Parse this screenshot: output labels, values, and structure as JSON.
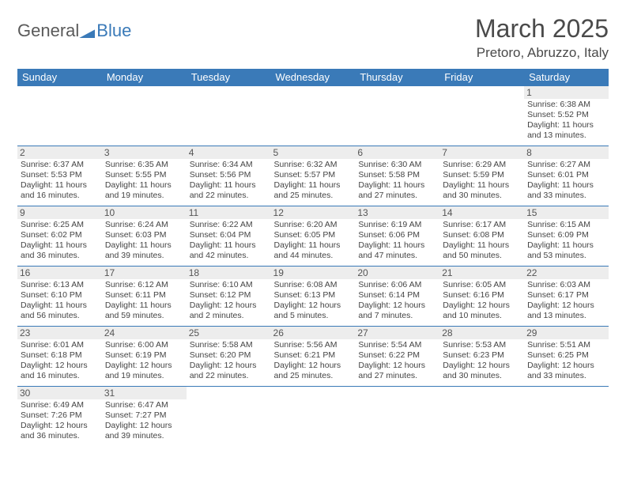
{
  "logo": {
    "part1": "General",
    "part2": "Blue"
  },
  "title": "March 2025",
  "location": "Pretoro, Abruzzo, Italy",
  "colors": {
    "header_bg": "#3a7ab8",
    "header_fg": "#ffffff",
    "daynum_bg": "#ededed",
    "border": "#3a7ab8",
    "text": "#444444"
  },
  "weekdays": [
    "Sunday",
    "Monday",
    "Tuesday",
    "Wednesday",
    "Thursday",
    "Friday",
    "Saturday"
  ],
  "weeks": [
    [
      null,
      null,
      null,
      null,
      null,
      null,
      {
        "n": "1",
        "sr": "Sunrise: 6:38 AM",
        "ss": "Sunset: 5:52 PM",
        "d1": "Daylight: 11 hours",
        "d2": "and 13 minutes."
      }
    ],
    [
      {
        "n": "2",
        "sr": "Sunrise: 6:37 AM",
        "ss": "Sunset: 5:53 PM",
        "d1": "Daylight: 11 hours",
        "d2": "and 16 minutes."
      },
      {
        "n": "3",
        "sr": "Sunrise: 6:35 AM",
        "ss": "Sunset: 5:55 PM",
        "d1": "Daylight: 11 hours",
        "d2": "and 19 minutes."
      },
      {
        "n": "4",
        "sr": "Sunrise: 6:34 AM",
        "ss": "Sunset: 5:56 PM",
        "d1": "Daylight: 11 hours",
        "d2": "and 22 minutes."
      },
      {
        "n": "5",
        "sr": "Sunrise: 6:32 AM",
        "ss": "Sunset: 5:57 PM",
        "d1": "Daylight: 11 hours",
        "d2": "and 25 minutes."
      },
      {
        "n": "6",
        "sr": "Sunrise: 6:30 AM",
        "ss": "Sunset: 5:58 PM",
        "d1": "Daylight: 11 hours",
        "d2": "and 27 minutes."
      },
      {
        "n": "7",
        "sr": "Sunrise: 6:29 AM",
        "ss": "Sunset: 5:59 PM",
        "d1": "Daylight: 11 hours",
        "d2": "and 30 minutes."
      },
      {
        "n": "8",
        "sr": "Sunrise: 6:27 AM",
        "ss": "Sunset: 6:01 PM",
        "d1": "Daylight: 11 hours",
        "d2": "and 33 minutes."
      }
    ],
    [
      {
        "n": "9",
        "sr": "Sunrise: 6:25 AM",
        "ss": "Sunset: 6:02 PM",
        "d1": "Daylight: 11 hours",
        "d2": "and 36 minutes."
      },
      {
        "n": "10",
        "sr": "Sunrise: 6:24 AM",
        "ss": "Sunset: 6:03 PM",
        "d1": "Daylight: 11 hours",
        "d2": "and 39 minutes."
      },
      {
        "n": "11",
        "sr": "Sunrise: 6:22 AM",
        "ss": "Sunset: 6:04 PM",
        "d1": "Daylight: 11 hours",
        "d2": "and 42 minutes."
      },
      {
        "n": "12",
        "sr": "Sunrise: 6:20 AM",
        "ss": "Sunset: 6:05 PM",
        "d1": "Daylight: 11 hours",
        "d2": "and 44 minutes."
      },
      {
        "n": "13",
        "sr": "Sunrise: 6:19 AM",
        "ss": "Sunset: 6:06 PM",
        "d1": "Daylight: 11 hours",
        "d2": "and 47 minutes."
      },
      {
        "n": "14",
        "sr": "Sunrise: 6:17 AM",
        "ss": "Sunset: 6:08 PM",
        "d1": "Daylight: 11 hours",
        "d2": "and 50 minutes."
      },
      {
        "n": "15",
        "sr": "Sunrise: 6:15 AM",
        "ss": "Sunset: 6:09 PM",
        "d1": "Daylight: 11 hours",
        "d2": "and 53 minutes."
      }
    ],
    [
      {
        "n": "16",
        "sr": "Sunrise: 6:13 AM",
        "ss": "Sunset: 6:10 PM",
        "d1": "Daylight: 11 hours",
        "d2": "and 56 minutes."
      },
      {
        "n": "17",
        "sr": "Sunrise: 6:12 AM",
        "ss": "Sunset: 6:11 PM",
        "d1": "Daylight: 11 hours",
        "d2": "and 59 minutes."
      },
      {
        "n": "18",
        "sr": "Sunrise: 6:10 AM",
        "ss": "Sunset: 6:12 PM",
        "d1": "Daylight: 12 hours",
        "d2": "and 2 minutes."
      },
      {
        "n": "19",
        "sr": "Sunrise: 6:08 AM",
        "ss": "Sunset: 6:13 PM",
        "d1": "Daylight: 12 hours",
        "d2": "and 5 minutes."
      },
      {
        "n": "20",
        "sr": "Sunrise: 6:06 AM",
        "ss": "Sunset: 6:14 PM",
        "d1": "Daylight: 12 hours",
        "d2": "and 7 minutes."
      },
      {
        "n": "21",
        "sr": "Sunrise: 6:05 AM",
        "ss": "Sunset: 6:16 PM",
        "d1": "Daylight: 12 hours",
        "d2": "and 10 minutes."
      },
      {
        "n": "22",
        "sr": "Sunrise: 6:03 AM",
        "ss": "Sunset: 6:17 PM",
        "d1": "Daylight: 12 hours",
        "d2": "and 13 minutes."
      }
    ],
    [
      {
        "n": "23",
        "sr": "Sunrise: 6:01 AM",
        "ss": "Sunset: 6:18 PM",
        "d1": "Daylight: 12 hours",
        "d2": "and 16 minutes."
      },
      {
        "n": "24",
        "sr": "Sunrise: 6:00 AM",
        "ss": "Sunset: 6:19 PM",
        "d1": "Daylight: 12 hours",
        "d2": "and 19 minutes."
      },
      {
        "n": "25",
        "sr": "Sunrise: 5:58 AM",
        "ss": "Sunset: 6:20 PM",
        "d1": "Daylight: 12 hours",
        "d2": "and 22 minutes."
      },
      {
        "n": "26",
        "sr": "Sunrise: 5:56 AM",
        "ss": "Sunset: 6:21 PM",
        "d1": "Daylight: 12 hours",
        "d2": "and 25 minutes."
      },
      {
        "n": "27",
        "sr": "Sunrise: 5:54 AM",
        "ss": "Sunset: 6:22 PM",
        "d1": "Daylight: 12 hours",
        "d2": "and 27 minutes."
      },
      {
        "n": "28",
        "sr": "Sunrise: 5:53 AM",
        "ss": "Sunset: 6:23 PM",
        "d1": "Daylight: 12 hours",
        "d2": "and 30 minutes."
      },
      {
        "n": "29",
        "sr": "Sunrise: 5:51 AM",
        "ss": "Sunset: 6:25 PM",
        "d1": "Daylight: 12 hours",
        "d2": "and 33 minutes."
      }
    ],
    [
      {
        "n": "30",
        "sr": "Sunrise: 6:49 AM",
        "ss": "Sunset: 7:26 PM",
        "d1": "Daylight: 12 hours",
        "d2": "and 36 minutes."
      },
      {
        "n": "31",
        "sr": "Sunrise: 6:47 AM",
        "ss": "Sunset: 7:27 PM",
        "d1": "Daylight: 12 hours",
        "d2": "and 39 minutes."
      },
      null,
      null,
      null,
      null,
      null
    ]
  ]
}
